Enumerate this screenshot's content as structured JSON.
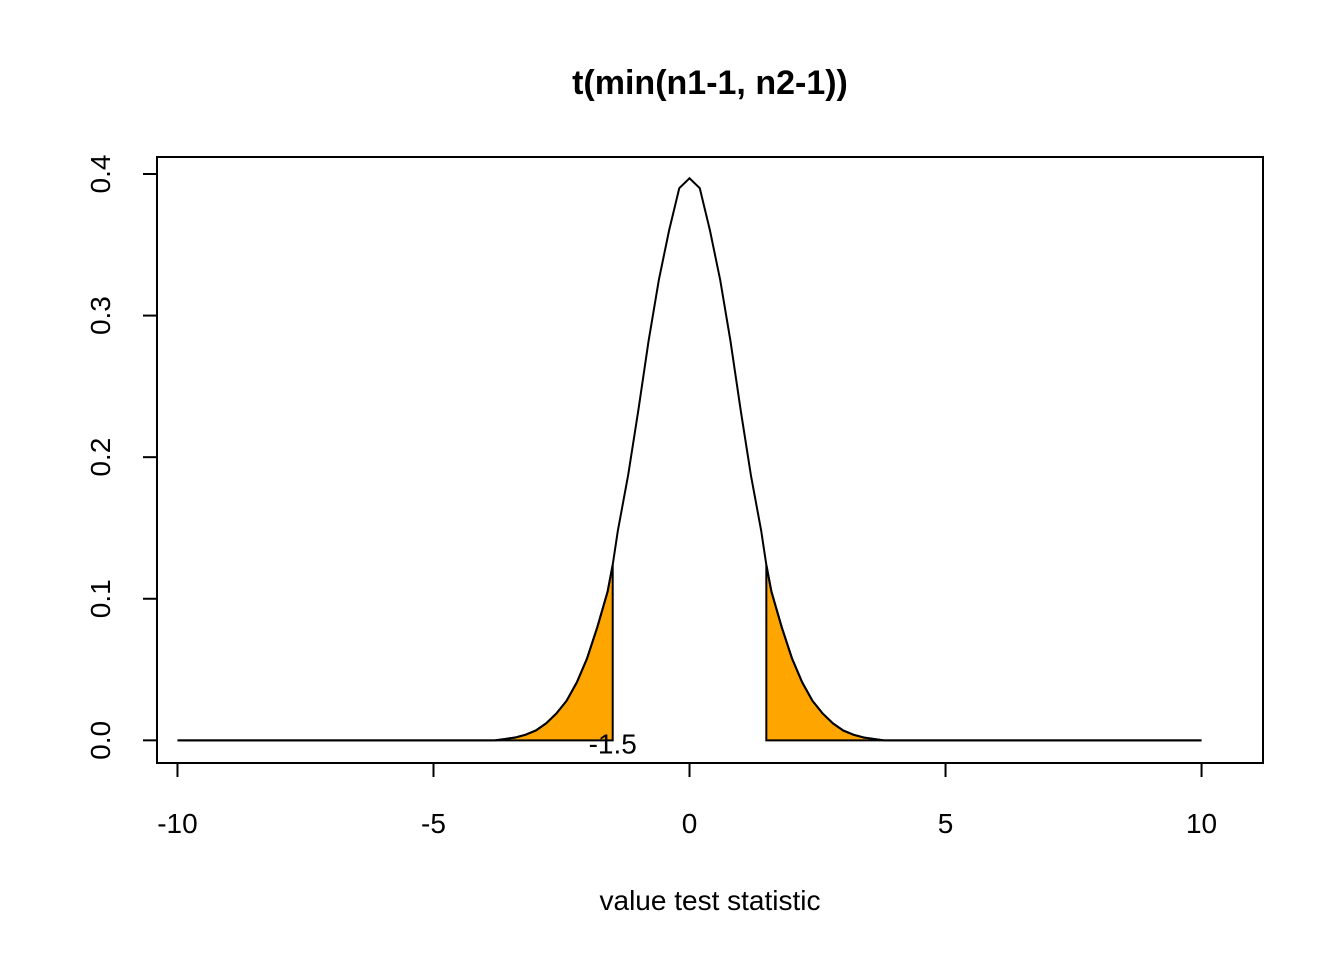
{
  "chart_data": {
    "type": "area",
    "title": "t(min(n1-1, n2-1))",
    "xlabel": "value test statistic",
    "ylabel": "",
    "xlim": [
      -10.4,
      11.2
    ],
    "ylim": [
      -0.016,
      0.412
    ],
    "x_ticks": [
      -10,
      -5,
      0,
      5,
      10
    ],
    "x_tick_labels": [
      "-10",
      "-5",
      "0",
      "5",
      "10"
    ],
    "y_ticks": [
      0.0,
      0.1,
      0.2,
      0.3,
      0.4
    ],
    "y_tick_labels": [
      "0.0",
      "0.1",
      "0.2",
      "0.3",
      "0.4"
    ],
    "grid": false,
    "legend": "none",
    "series": [
      {
        "x": [
          -10,
          -3.8,
          -3.6,
          -3.4,
          -3.2,
          -3.0,
          -2.8,
          -2.6,
          -2.4,
          -2.2,
          -2.0,
          -1.8,
          -1.6,
          -1.5,
          -1.4,
          -1.2,
          -1.0,
          -0.8,
          -0.6,
          -0.4,
          -0.2,
          0.0,
          0.2,
          0.4,
          0.6,
          0.8,
          1.0,
          1.2,
          1.4,
          1.5,
          1.6,
          1.8,
          2.0,
          2.2,
          2.4,
          2.6,
          2.8,
          3.0,
          3.2,
          3.4,
          3.6,
          3.8,
          10
        ],
        "y": [
          0.0,
          0.0,
          0.001,
          0.002,
          0.004,
          0.007,
          0.012,
          0.019,
          0.028,
          0.041,
          0.058,
          0.08,
          0.105,
          0.124,
          0.148,
          0.187,
          0.233,
          0.282,
          0.325,
          0.36,
          0.39,
          0.397,
          0.39,
          0.36,
          0.325,
          0.282,
          0.233,
          0.187,
          0.148,
          0.124,
          0.105,
          0.08,
          0.058,
          0.041,
          0.028,
          0.019,
          0.012,
          0.007,
          0.004,
          0.002,
          0.001,
          0.0,
          0.0
        ]
      }
    ],
    "shaded_regions": [
      {
        "from": -10,
        "to": -1.5,
        "color": "#FFA500"
      },
      {
        "from": 1.5,
        "to": 10,
        "color": "#FFA500"
      }
    ],
    "annotations": [
      {
        "x": -1.5,
        "y": 0.0,
        "text": "-1.5"
      }
    ]
  }
}
